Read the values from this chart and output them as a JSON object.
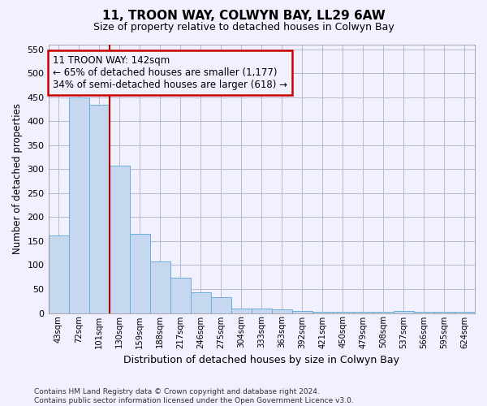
{
  "title": "11, TROON WAY, COLWYN BAY, LL29 6AW",
  "subtitle": "Size of property relative to detached houses in Colwyn Bay",
  "xlabel": "Distribution of detached houses by size in Colwyn Bay",
  "ylabel": "Number of detached properties",
  "categories": [
    "43sqm",
    "72sqm",
    "101sqm",
    "130sqm",
    "159sqm",
    "188sqm",
    "217sqm",
    "246sqm",
    "275sqm",
    "304sqm",
    "333sqm",
    "363sqm",
    "392sqm",
    "421sqm",
    "450sqm",
    "479sqm",
    "508sqm",
    "537sqm",
    "566sqm",
    "595sqm",
    "624sqm"
  ],
  "values": [
    162,
    450,
    435,
    307,
    165,
    107,
    73,
    43,
    33,
    10,
    10,
    8,
    5,
    3,
    2,
    2,
    2,
    5,
    3,
    2,
    3
  ],
  "bar_color": "#c5d8f0",
  "bar_edge_color": "#6baed6",
  "red_line_after_index": 2,
  "annotation_box_text": "11 TROON WAY: 142sqm\n← 65% of detached houses are smaller (1,177)\n34% of semi-detached houses are larger (618) →",
  "red_line_color": "#aa0000",
  "ylim": [
    0,
    560
  ],
  "yticks": [
    0,
    50,
    100,
    150,
    200,
    250,
    300,
    350,
    400,
    450,
    500,
    550
  ],
  "footer_line1": "Contains HM Land Registry data © Crown copyright and database right 2024.",
  "footer_line2": "Contains public sector information licensed under the Open Government Licence v3.0.",
  "background_color": "#f0f0ff",
  "grid_color": "#b0b0cc"
}
